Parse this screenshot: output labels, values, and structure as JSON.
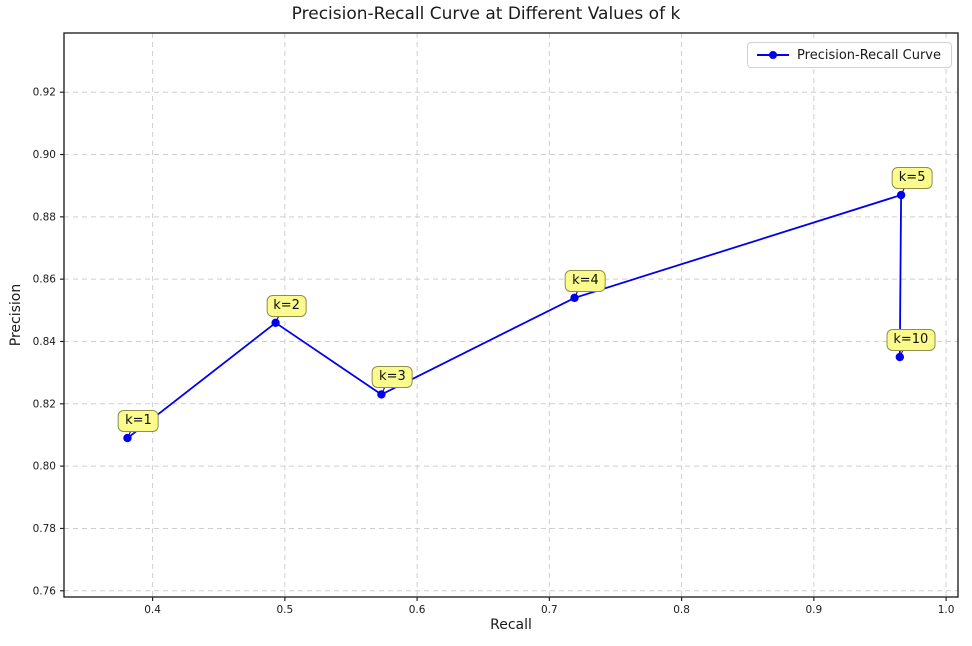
{
  "chart_data": {
    "type": "line",
    "title": "Precision-Recall Curve at Different Values of k",
    "xlabel": "Recall",
    "ylabel": "Precision",
    "xlim": [
      0.333,
      1.009
    ],
    "ylim": [
      0.758,
      0.939
    ],
    "xticks": [
      0.4,
      0.5,
      0.6,
      0.7,
      0.8,
      0.9,
      1.0
    ],
    "xtick_labels": [
      "0.4",
      "0.5",
      "0.6",
      "0.7",
      "0.8",
      "0.9",
      "1.0"
    ],
    "yticks": [
      0.76,
      0.78,
      0.8,
      0.82,
      0.84,
      0.86,
      0.88,
      0.9,
      0.92
    ],
    "ytick_labels": [
      "0.76",
      "0.78",
      "0.80",
      "0.82",
      "0.84",
      "0.86",
      "0.88",
      "0.90",
      "0.92"
    ],
    "grid": true,
    "grid_style": "dashed",
    "legend_position": "upper right",
    "series": [
      {
        "name": "Precision-Recall Curve",
        "color": "#0000ee",
        "marker": "circle",
        "points": [
          {
            "label": "k=1",
            "x": 0.381,
            "y": 0.809
          },
          {
            "label": "k=2",
            "x": 0.493,
            "y": 0.846
          },
          {
            "label": "k=3",
            "x": 0.573,
            "y": 0.823
          },
          {
            "label": "k=4",
            "x": 0.719,
            "y": 0.854
          },
          {
            "label": "k=5",
            "x": 0.966,
            "y": 0.887
          },
          {
            "label": "k=10",
            "x": 0.965,
            "y": 0.835
          }
        ]
      }
    ],
    "annotation_colors": {
      "face": "#fbfb8d",
      "edge": "#8f8f4a"
    },
    "axis_color": "#262626",
    "grid_color": "#cfcfcf"
  }
}
